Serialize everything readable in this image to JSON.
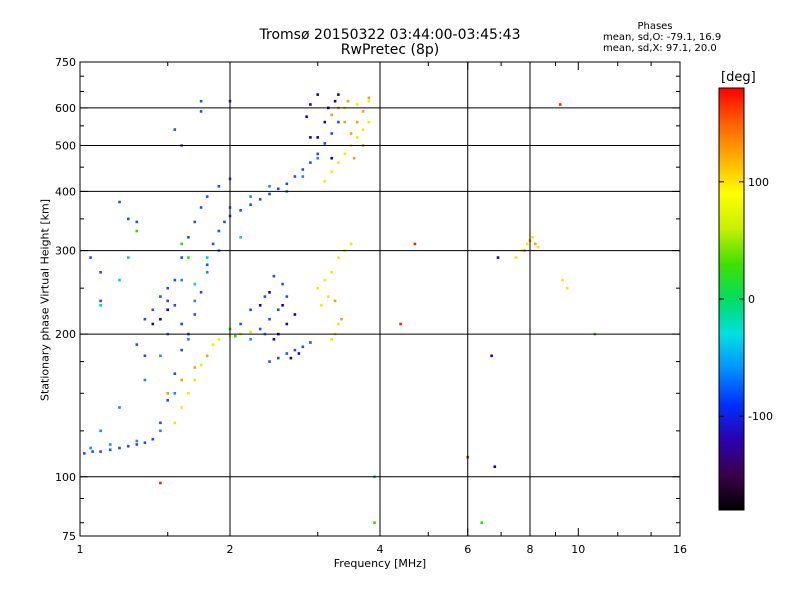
{
  "chart_data": {
    "type": "scatter",
    "title": "Tromsø 20150322 03:44:00-03:45:43",
    "subtitle": "RwPretec (8p)",
    "xlabel": "Frequency [MHz]",
    "ylabel": "Stationary phase Virtual Height [km]",
    "x_scale": "log",
    "y_scale": "log",
    "xlim": [
      1,
      16
    ],
    "ylim": [
      75,
      750
    ],
    "x_ticks": [
      1,
      2,
      4,
      6,
      8,
      10,
      16
    ],
    "x_tick_labels": [
      "1",
      "2",
      "4",
      "6",
      "8",
      "10",
      "16"
    ],
    "x_grid": [
      2,
      4,
      6,
      8
    ],
    "y_ticks": [
      75,
      100,
      200,
      300,
      400,
      500,
      600,
      750
    ],
    "y_tick_labels": [
      "75",
      "100",
      "200",
      "300",
      "400",
      "500",
      "600",
      "750"
    ],
    "y_grid": [
      100,
      200,
      300,
      400,
      500,
      600
    ],
    "grid": true,
    "phase_stats": {
      "header": "Phases",
      "o_line": "mean, sd,O: -79.1, 16.9",
      "x_line": "mean, sd,X:  97.1, 20.0"
    },
    "colorbar": {
      "label": "[deg]",
      "range": [
        -180,
        180
      ],
      "ticks": [
        100,
        0,
        -100
      ],
      "tick_labels": [
        "100",
        "0",
        "-100"
      ],
      "colors": [
        "#000000",
        "#3a004a",
        "#2b00b0",
        "#0030ff",
        "#0090ff",
        "#00e0e0",
        "#00dd60",
        "#40e000",
        "#c8f000",
        "#ffff00",
        "#ffb000",
        "#ff6000",
        "#ff0000"
      ]
    },
    "series": [
      {
        "phase": -100,
        "color": "#1a50ff",
        "points": [
          [
            1.02,
            112
          ],
          [
            1.06,
            113
          ],
          [
            1.1,
            113
          ],
          [
            1.15,
            114
          ],
          [
            1.2,
            115
          ],
          [
            1.25,
            116
          ],
          [
            1.3,
            117
          ],
          [
            1.35,
            118
          ],
          [
            1.4,
            120
          ],
          [
            1.45,
            130
          ],
          [
            1.5,
            145
          ],
          [
            1.55,
            165
          ],
          [
            1.6,
            185
          ],
          [
            1.65,
            200
          ],
          [
            1.7,
            220
          ],
          [
            1.75,
            245
          ],
          [
            1.8,
            280
          ],
          [
            1.85,
            310
          ],
          [
            1.9,
            330
          ],
          [
            1.95,
            345
          ],
          [
            2.0,
            355
          ],
          [
            2.1,
            365
          ],
          [
            2.2,
            375
          ],
          [
            2.3,
            385
          ],
          [
            2.4,
            395
          ],
          [
            2.5,
            405
          ],
          [
            2.6,
            415
          ],
          [
            2.7,
            430
          ],
          [
            2.8,
            445
          ],
          [
            2.9,
            460
          ],
          [
            3.0,
            480
          ],
          [
            3.1,
            505
          ],
          [
            3.2,
            530
          ],
          [
            3.3,
            560
          ],
          [
            1.5,
            235
          ],
          [
            1.55,
            260
          ],
          [
            1.6,
            290
          ],
          [
            1.65,
            320
          ],
          [
            1.7,
            345
          ],
          [
            1.75,
            370
          ],
          [
            1.8,
            390
          ],
          [
            1.9,
            410
          ],
          [
            2.0,
            425
          ],
          [
            1.35,
            215
          ],
          [
            1.4,
            225
          ],
          [
            1.45,
            240
          ],
          [
            1.5,
            250
          ],
          [
            1.55,
            230
          ],
          [
            1.6,
            210
          ],
          [
            1.3,
            190
          ],
          [
            1.35,
            180
          ],
          [
            2.4,
            175
          ],
          [
            2.5,
            178
          ],
          [
            2.6,
            182
          ],
          [
            2.7,
            185
          ],
          [
            2.8,
            188
          ],
          [
            2.9,
            192
          ],
          [
            2.3,
            205
          ],
          [
            2.4,
            215
          ],
          [
            2.5,
            225
          ],
          [
            2.6,
            240
          ],
          [
            2.55,
            255
          ],
          [
            2.45,
            265
          ],
          [
            2.35,
            240
          ],
          [
            2.2,
            225
          ],
          [
            2.1,
            210
          ],
          [
            1.05,
            290
          ],
          [
            1.1,
            270
          ],
          [
            1.1,
            235
          ],
          [
            1.2,
            380
          ],
          [
            1.25,
            350
          ],
          [
            1.3,
            345
          ],
          [
            1.75,
            590
          ],
          [
            1.75,
            620
          ],
          [
            2.0,
            620
          ],
          [
            1.55,
            540
          ],
          [
            1.6,
            500
          ]
        ]
      },
      {
        "phase": -80,
        "color": "#1888ff",
        "points": [
          [
            1.05,
            115
          ],
          [
            1.15,
            117
          ],
          [
            1.3,
            119
          ],
          [
            1.45,
            125
          ],
          [
            1.55,
            150
          ],
          [
            1.65,
            195
          ],
          [
            1.7,
            235
          ],
          [
            1.8,
            270
          ],
          [
            1.9,
            300
          ],
          [
            2.0,
            370
          ],
          [
            2.2,
            390
          ],
          [
            2.4,
            410
          ],
          [
            2.6,
            400
          ],
          [
            2.8,
            430
          ],
          [
            3.0,
            470
          ],
          [
            1.6,
            260
          ],
          [
            1.5,
            200
          ],
          [
            1.45,
            180
          ],
          [
            2.2,
            195
          ],
          [
            2.35,
            200
          ],
          [
            1.2,
            140
          ],
          [
            1.35,
            160
          ],
          [
            1.1,
            125
          ]
        ]
      },
      {
        "phase": -120,
        "color": "#1400c8",
        "points": [
          [
            2.5,
            200
          ],
          [
            2.6,
            210
          ],
          [
            2.7,
            220
          ],
          [
            2.55,
            230
          ],
          [
            2.45,
            195
          ],
          [
            2.65,
            178
          ],
          [
            2.75,
            182
          ],
          [
            3.0,
            520
          ],
          [
            3.1,
            560
          ],
          [
            3.15,
            600
          ],
          [
            3.25,
            620
          ],
          [
            3.3,
            640
          ],
          [
            3.0,
            640
          ],
          [
            2.9,
            610
          ],
          [
            2.85,
            575
          ],
          [
            1.4,
            210
          ],
          [
            1.45,
            215
          ],
          [
            1.5,
            225
          ],
          [
            2.3,
            230
          ],
          [
            2.4,
            245
          ],
          [
            3.2,
            470
          ],
          [
            2.9,
            520
          ],
          [
            6.8,
            105
          ],
          [
            6.7,
            180
          ],
          [
            6.9,
            290
          ]
        ]
      },
      {
        "phase": 100,
        "color": "#f8e800",
        "points": [
          [
            1.55,
            130
          ],
          [
            1.6,
            140
          ],
          [
            1.65,
            150
          ],
          [
            1.7,
            160
          ],
          [
            1.75,
            172
          ],
          [
            1.8,
            180
          ],
          [
            1.85,
            190
          ],
          [
            1.9,
            195
          ],
          [
            2.0,
            198
          ],
          [
            2.1,
            200
          ],
          [
            2.2,
            202
          ],
          [
            3.2,
            195
          ],
          [
            3.25,
            200
          ],
          [
            3.3,
            210
          ],
          [
            3.0,
            250
          ],
          [
            3.1,
            260
          ],
          [
            3.2,
            270
          ],
          [
            3.3,
            290
          ],
          [
            3.4,
            300
          ],
          [
            3.5,
            310
          ],
          [
            3.1,
            420
          ],
          [
            3.2,
            440
          ],
          [
            3.3,
            460
          ],
          [
            3.4,
            480
          ],
          [
            3.5,
            500
          ],
          [
            3.6,
            520
          ],
          [
            3.7,
            540
          ],
          [
            3.8,
            560
          ],
          [
            3.4,
            600
          ],
          [
            3.6,
            610
          ],
          [
            3.8,
            620
          ],
          [
            7.5,
            290
          ],
          [
            7.7,
            300
          ],
          [
            7.9,
            310
          ],
          [
            8.1,
            320
          ],
          [
            8.3,
            305
          ],
          [
            9.3,
            260
          ],
          [
            9.5,
            250
          ],
          [
            3.05,
            230
          ],
          [
            3.15,
            240
          ]
        ]
      },
      {
        "phase": 140,
        "color": "#ffa000",
        "points": [
          [
            1.5,
            150
          ],
          [
            1.6,
            160
          ],
          [
            1.7,
            170
          ],
          [
            1.8,
            180
          ],
          [
            3.5,
            530
          ],
          [
            3.6,
            560
          ],
          [
            3.7,
            590
          ],
          [
            3.8,
            630
          ],
          [
            3.3,
            600
          ],
          [
            3.45,
            620
          ],
          [
            3.2,
            580
          ],
          [
            3.55,
            470
          ],
          [
            3.7,
            500
          ],
          [
            3.25,
            235
          ],
          [
            3.35,
            215
          ],
          [
            7.8,
            300
          ],
          [
            8.0,
            315
          ],
          [
            8.2,
            310
          ],
          [
            3.4,
            560
          ]
        ]
      },
      {
        "phase": 20,
        "color": "#2ce000",
        "points": [
          [
            1.6,
            310
          ],
          [
            1.65,
            290
          ],
          [
            2.0,
            205
          ],
          [
            2.05,
            198
          ],
          [
            1.3,
            330
          ],
          [
            10.8,
            200
          ],
          [
            6.4,
            80
          ],
          [
            3.9,
            80
          ]
        ]
      },
      {
        "phase": 170,
        "color": "#ff2000",
        "points": [
          [
            1.45,
            97
          ],
          [
            4.4,
            210
          ],
          [
            6.0,
            110
          ],
          [
            9.2,
            610
          ],
          [
            4.7,
            310
          ]
        ]
      },
      {
        "phase": -60,
        "color": "#00c8e8",
        "points": [
          [
            1.1,
            230
          ],
          [
            1.2,
            260
          ],
          [
            1.25,
            290
          ],
          [
            3.9,
            100
          ],
          [
            1.7,
            255
          ],
          [
            1.8,
            290
          ],
          [
            2.1,
            320
          ]
        ]
      }
    ]
  }
}
